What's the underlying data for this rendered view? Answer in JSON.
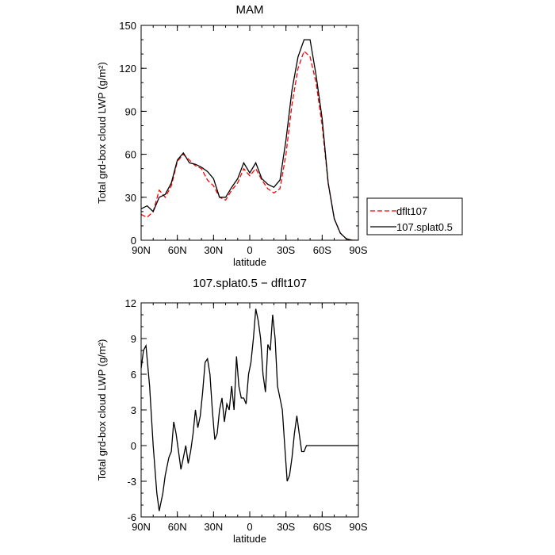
{
  "chart_data": [
    {
      "type": "line",
      "title": "MAM",
      "xlabel": "latitude",
      "ylabel": "Total grd-box cloud LWP (g/m²)",
      "xlim": [
        90,
        -90
      ],
      "ylim": [
        0,
        150
      ],
      "xticks": [
        90,
        60,
        30,
        0,
        -30,
        -60,
        -90
      ],
      "xticklabels": [
        "90N",
        "60N",
        "30N",
        "0",
        "30S",
        "60S",
        "90S"
      ],
      "yticks": [
        0,
        30,
        60,
        90,
        120,
        150
      ],
      "legend": "right",
      "series": [
        {
          "name": "dflt107",
          "color": "#ff0000",
          "style": "dashed",
          "x": [
            90,
            85,
            80,
            75,
            70,
            65,
            60,
            55,
            50,
            45,
            40,
            35,
            30,
            25,
            20,
            15,
            10,
            5,
            0,
            -5,
            -10,
            -15,
            -20,
            -25,
            -30,
            -35,
            -40,
            -45,
            -50,
            -55,
            -60,
            -65,
            -70,
            -75,
            -80,
            -85,
            -90
          ],
          "y": [
            18,
            16,
            20,
            35,
            30,
            38,
            55,
            60,
            56,
            52,
            50,
            42,
            38,
            30,
            28,
            35,
            40,
            50,
            45,
            50,
            42,
            36,
            33,
            36,
            60,
            95,
            120,
            132,
            128,
            110,
            80,
            40,
            15,
            5,
            1,
            0,
            0
          ]
        },
        {
          "name": "107.splat0.5",
          "color": "#000000",
          "style": "solid",
          "x": [
            90,
            85,
            80,
            75,
            70,
            65,
            60,
            55,
            50,
            45,
            40,
            35,
            30,
            25,
            20,
            15,
            10,
            5,
            0,
            -5,
            -10,
            -15,
            -20,
            -25,
            -30,
            -35,
            -40,
            -45,
            -50,
            -55,
            -60,
            -65,
            -70,
            -75,
            -80,
            -85,
            -90
          ],
          "y": [
            22,
            24,
            20,
            30,
            32,
            40,
            56,
            61,
            54,
            53,
            51,
            48,
            43,
            30,
            30,
            37,
            43,
            54,
            47,
            54,
            43,
            39,
            37,
            42,
            70,
            105,
            128,
            140,
            140,
            115,
            85,
            40,
            15,
            5,
            1,
            0,
            0
          ]
        }
      ]
    },
    {
      "type": "line",
      "title": "107.splat0.5 − dflt107",
      "xlabel": "latitude",
      "ylabel": "Total grd-box cloud LWP (g/m²)",
      "xlim": [
        90,
        -90
      ],
      "ylim": [
        -6,
        12
      ],
      "xticks": [
        90,
        60,
        30,
        0,
        -30,
        -60,
        -90
      ],
      "xticklabels": [
        "90N",
        "60N",
        "30N",
        "0",
        "30S",
        "60S",
        "90S"
      ],
      "yticks": [
        -6,
        -3,
        0,
        3,
        6,
        9,
        12
      ],
      "series": [
        {
          "color": "#000000",
          "style": "solid",
          "x": [
            90,
            88,
            86,
            83,
            80,
            77,
            75,
            72,
            70,
            67,
            65,
            63,
            61,
            59,
            57,
            55,
            53,
            51,
            49,
            47,
            45,
            43,
            41,
            39,
            37,
            35,
            33,
            31,
            29,
            27,
            25,
            23,
            21,
            19,
            17,
            15,
            13,
            11,
            9,
            7,
            5,
            3,
            1,
            -1,
            -3,
            -5,
            -7,
            -9,
            -11,
            -13,
            -15,
            -17,
            -19,
            -21,
            -23,
            -25,
            -27,
            -29,
            -31,
            -33,
            -35,
            -37,
            -39,
            -41,
            -43,
            -45,
            -47,
            -49,
            -51,
            -53,
            -55,
            -57,
            -59,
            -61,
            -63,
            -65,
            -67,
            -69,
            -71,
            -73,
            -75,
            -77,
            -79,
            -81,
            -83,
            -85,
            -87,
            -90
          ],
          "y": [
            6.5,
            8.0,
            8.4,
            5.0,
            0.0,
            -4.0,
            -5.5,
            -4.0,
            -2.5,
            -1.0,
            -0.5,
            2.0,
            1.0,
            -0.5,
            -2.0,
            -1.0,
            0.0,
            -1.5,
            -0.5,
            1.0,
            3.0,
            1.5,
            2.5,
            4.5,
            7.0,
            7.3,
            6.0,
            3.0,
            0.5,
            1.0,
            3.0,
            4.0,
            2.0,
            3.5,
            3.0,
            5.0,
            3.0,
            7.5,
            5.0,
            4.0,
            4.0,
            3.5,
            6.0,
            7.0,
            9.0,
            11.5,
            10.5,
            9.0,
            6.0,
            4.5,
            8.5,
            8.0,
            11.0,
            9.0,
            5.0,
            4.0,
            3.0,
            0.0,
            -3.0,
            -2.5,
            -1.0,
            1.0,
            2.5,
            1.0,
            -0.5,
            -0.5,
            0.0,
            0.0,
            0.0,
            0.0,
            0.0,
            0.0,
            0.0,
            0.0,
            0.0,
            0.0,
            0.0,
            0.0,
            0.0,
            0.0,
            0.0,
            0.0,
            0.0,
            0.0,
            0.0,
            0.0,
            0.0,
            0.0
          ]
        }
      ]
    }
  ]
}
